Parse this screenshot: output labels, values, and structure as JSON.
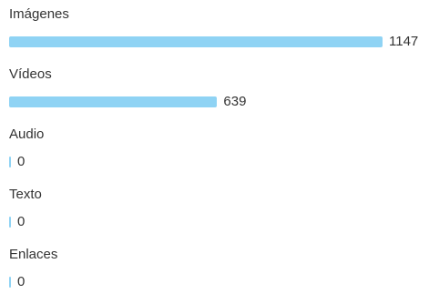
{
  "chart_data": {
    "type": "bar",
    "orientation": "horizontal",
    "categories": [
      "Imágenes",
      "Vídeos",
      "Audio",
      "Texto",
      "Enlaces"
    ],
    "values": [
      1147,
      639,
      0,
      0,
      0
    ],
    "value_labels": [
      "1147",
      "639",
      "0",
      "0",
      "0"
    ],
    "bar_color": "#8fd3f4",
    "title": "",
    "xlabel": "",
    "ylabel": ""
  }
}
